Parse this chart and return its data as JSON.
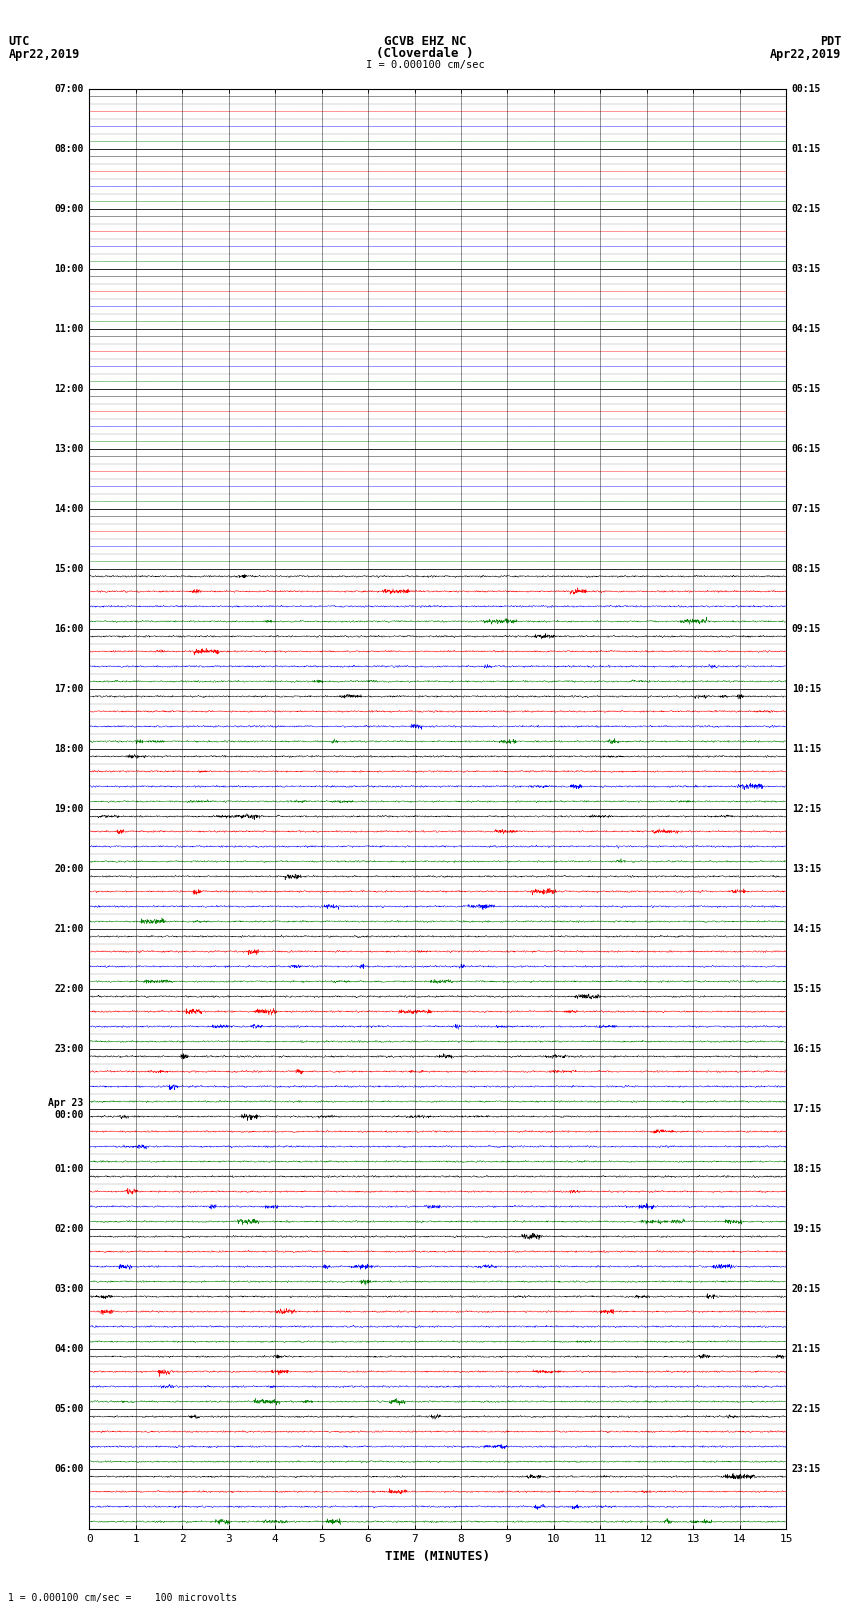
{
  "title_line1": "GCVB EHZ NC",
  "title_line2": "(Cloverdale )",
  "title_line3": "I = 0.000100 cm/sec",
  "left_header_line1": "UTC",
  "left_header_line2": "Apr22,2019",
  "right_header_line1": "PDT",
  "right_header_line2": "Apr22,2019",
  "xlabel": "TIME (MINUTES)",
  "footer": "1 = 0.000100 cm/sec =    100 microvolts",
  "utc_labels": [
    "07:00",
    "08:00",
    "09:00",
    "10:00",
    "11:00",
    "12:00",
    "13:00",
    "14:00",
    "15:00",
    "16:00",
    "17:00",
    "18:00",
    "19:00",
    "20:00",
    "21:00",
    "22:00",
    "23:00",
    "Apr 23\n00:00",
    "01:00",
    "02:00",
    "03:00",
    "04:00",
    "05:00",
    "06:00"
  ],
  "pdt_labels": [
    "00:15",
    "01:15",
    "02:15",
    "03:15",
    "04:15",
    "05:15",
    "06:15",
    "07:15",
    "08:15",
    "09:15",
    "10:15",
    "11:15",
    "12:15",
    "13:15",
    "14:15",
    "15:15",
    "16:15",
    "17:15",
    "18:15",
    "19:15",
    "20:15",
    "21:15",
    "22:15",
    "23:15"
  ],
  "n_hours": 24,
  "n_subtraces": 4,
  "n_points": 3000,
  "x_min": 0,
  "x_max": 15,
  "x_ticks": [
    0,
    1,
    2,
    3,
    4,
    5,
    6,
    7,
    8,
    9,
    10,
    11,
    12,
    13,
    14,
    15
  ],
  "background_color": "#ffffff",
  "trace_colors": [
    "black",
    "red",
    "blue",
    "green"
  ],
  "quiet_hours": 8,
  "font_family": "monospace",
  "lw_quiet": 0.3,
  "lw_active": 0.35
}
